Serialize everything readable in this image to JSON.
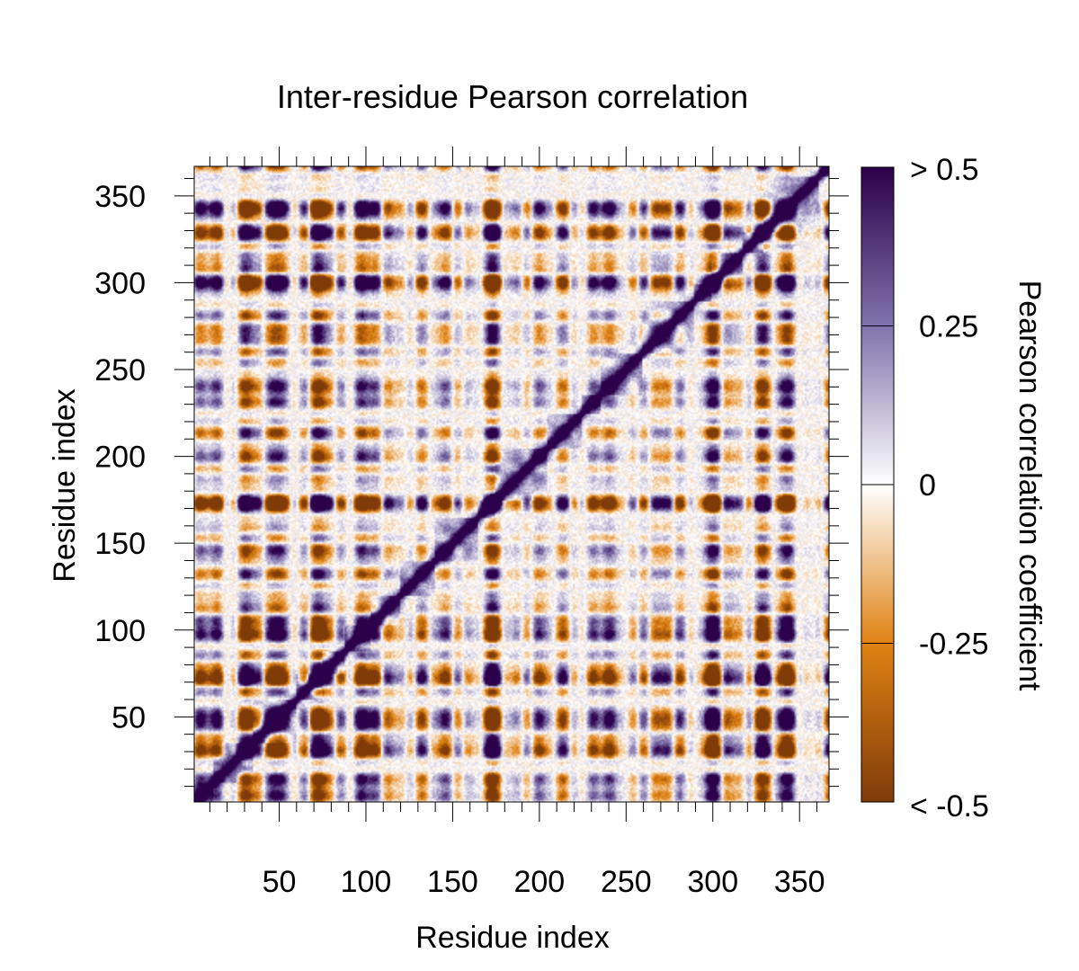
{
  "chart_data": {
    "type": "heatmap",
    "title": "Inter-residue Pearson correlation",
    "xlabel": "Residue index",
    "ylabel": "Residue index",
    "xlim": [
      1,
      367
    ],
    "ylim": [
      1,
      367
    ],
    "x_ticks": [
      50,
      100,
      150,
      200,
      250,
      300,
      350
    ],
    "y_ticks": [
      50,
      100,
      150,
      200,
      250,
      300,
      350
    ],
    "minor_tick_step": 10,
    "value_range": [
      -0.5,
      0.5
    ],
    "colorbar": {
      "label": "Pearson correlation coefficient",
      "ticks": [
        {
          "value": 0.5,
          "label": "> 0.5"
        },
        {
          "value": 0.25,
          "label": "0.25"
        },
        {
          "value": 0,
          "label": "0"
        },
        {
          "value": -0.25,
          "label": "-0.25"
        },
        {
          "value": -0.5,
          "label": "< -0.5"
        }
      ],
      "colors": {
        "max": "#2d004b",
        "mid_high": "#8073ac",
        "zero": "#ffffff",
        "mid_low": "#e08214",
        "min": "#7f3b08"
      }
    },
    "diagonal_blocks": [
      [
        1,
        12
      ],
      [
        12,
        35
      ],
      [
        35,
        60
      ],
      [
        60,
        75
      ],
      [
        75,
        88
      ],
      [
        88,
        103
      ],
      [
        103,
        120
      ],
      [
        120,
        140
      ],
      [
        140,
        165
      ],
      [
        165,
        175
      ],
      [
        175,
        205
      ],
      [
        205,
        225
      ],
      [
        225,
        236
      ],
      [
        236,
        260
      ],
      [
        260,
        290
      ],
      [
        290,
        300
      ],
      [
        300,
        318
      ],
      [
        318,
        330
      ],
      [
        330,
        362
      ],
      [
        362,
        367
      ]
    ],
    "dark_bands": [
      {
        "center": 15,
        "sign": 1
      },
      {
        "center": 30,
        "sign": -1
      },
      {
        "center": 50,
        "sign": 1
      },
      {
        "center": 72,
        "sign": -1
      },
      {
        "center": 97,
        "sign": 1
      },
      {
        "center": 173,
        "sign": -1
      },
      {
        "center": 232,
        "sign": 1
      },
      {
        "center": 300,
        "sign": 1
      },
      {
        "center": 330,
        "sign": -1
      },
      {
        "center": 345,
        "sign": 1
      }
    ]
  }
}
